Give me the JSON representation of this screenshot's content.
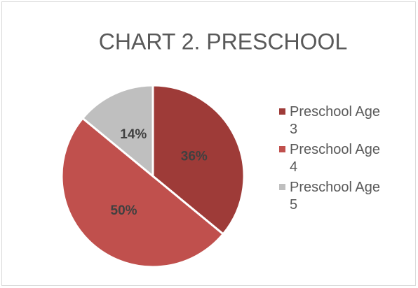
{
  "chart_data": {
    "type": "pie",
    "title": "CHART 2. PRESCHOOL",
    "categories": [
      "Preschool Age 3",
      "Preschool Age 4",
      "Preschool Age 5"
    ],
    "values": [
      36,
      50,
      14
    ],
    "value_labels": [
      "36%",
      "50%",
      "14%"
    ],
    "colors": [
      "#9e3b38",
      "#c0504d",
      "#bfbfbf"
    ],
    "legend": "right"
  }
}
